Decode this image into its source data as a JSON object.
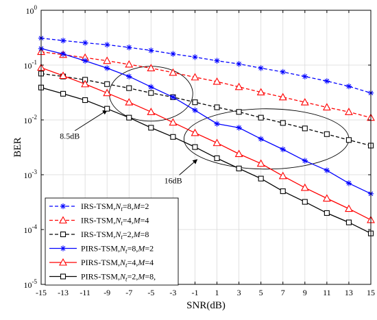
{
  "chart_data": {
    "type": "line",
    "xlabel": "SNR(dB)",
    "ylabel": "BER",
    "xlim": [
      -15,
      15
    ],
    "ylim": [
      1e-05,
      1
    ],
    "yscale": "log",
    "grid": true,
    "legend_position": "bottom-left",
    "x_ticks": [
      -15,
      -13,
      -11,
      -9,
      -7,
      -5,
      -3,
      -1,
      1,
      3,
      5,
      7,
      9,
      11,
      13,
      15
    ],
    "x_tick_labels": [
      "-15",
      "-13",
      "-11",
      "-9",
      "-7",
      "-5",
      "-3",
      "-1",
      "1",
      "3",
      "5",
      "7",
      "9",
      "11",
      "13",
      "15"
    ],
    "y_tick_labels": [
      {
        "base": "10",
        "exp": "0",
        "value": 1
      },
      {
        "base": "10",
        "exp": "-1",
        "value": 0.1
      },
      {
        "base": "10",
        "exp": "-2",
        "value": 0.01
      },
      {
        "base": "10",
        "exp": "-3",
        "value": 0.001
      },
      {
        "base": "10",
        "exp": "-4",
        "value": 0.0001
      },
      {
        "base": "10",
        "exp": "-5",
        "value": 1e-05
      }
    ],
    "x": [
      -15,
      -13,
      -11,
      -9,
      -7,
      -5,
      -3,
      -1,
      1,
      3,
      5,
      7,
      9,
      11,
      13,
      15
    ],
    "series": [
      {
        "name": "IRS-TSM,Nt=8,M=2",
        "legend_parts": [
          "IRS-TSM,",
          "N",
          "t",
          "=8,",
          "M",
          "=2"
        ],
        "color": "#0000ff",
        "dash": true,
        "marker": "asterisk",
        "values": [
          0.31,
          0.28,
          0.255,
          0.235,
          0.21,
          0.185,
          0.16,
          0.14,
          0.12,
          0.105,
          0.088,
          0.075,
          0.062,
          0.051,
          0.041,
          0.031
        ]
      },
      {
        "name": "IRS-TSM,Nt=4,M=4",
        "legend_parts": [
          "IRS-TSM,",
          "N",
          "t",
          "=4,",
          "M",
          "=4"
        ],
        "color": "#ff0000",
        "dash": true,
        "marker": "triangle",
        "values": [
          0.175,
          0.155,
          0.137,
          0.12,
          0.103,
          0.088,
          0.073,
          0.06,
          0.05,
          0.04,
          0.032,
          0.026,
          0.021,
          0.017,
          0.014,
          0.011
        ]
      },
      {
        "name": "IRS-TSM,Nt=2,M=8",
        "legend_parts": [
          "IRS-TSM,",
          "N",
          "t",
          "=2,",
          "M",
          "=8"
        ],
        "color": "#000000",
        "dash": true,
        "marker": "square",
        "values": [
          0.07,
          0.062,
          0.054,
          0.045,
          0.038,
          0.031,
          0.026,
          0.021,
          0.017,
          0.014,
          0.011,
          0.0088,
          0.007,
          0.0055,
          0.0043,
          0.0034
        ]
      },
      {
        "name": "PIRS-TSM,Nt=8,M=2",
        "legend_parts": [
          "PIRS-TSM,",
          "N",
          "t",
          "=8,",
          "M",
          "=2"
        ],
        "color": "#0000ff",
        "dash": false,
        "marker": "asterisk",
        "values": [
          0.2,
          0.16,
          0.12,
          0.088,
          0.062,
          0.04,
          0.026,
          0.015,
          0.0085,
          0.0072,
          0.0045,
          0.0029,
          0.0018,
          0.0012,
          0.0007,
          0.00045
        ]
      },
      {
        "name": "PIRS-TSM,Nt=4,M=4",
        "legend_parts": [
          "PIRS-TSM,",
          "N",
          "t",
          "=4,",
          "M",
          "=4"
        ],
        "color": "#ff0000",
        "dash": false,
        "marker": "triangle",
        "values": [
          0.09,
          0.064,
          0.045,
          0.031,
          0.021,
          0.014,
          0.009,
          0.0058,
          0.0038,
          0.0024,
          0.0016,
          0.00095,
          0.00058,
          0.00037,
          0.00024,
          0.00015
        ]
      },
      {
        "name": "PIRS-TSM,Nt=2,M=8,",
        "legend_parts": [
          "PIRS-TSM,",
          "N",
          "t",
          "=2,",
          "M",
          "=8,"
        ],
        "color": "#000000",
        "dash": false,
        "marker": "square",
        "values": [
          0.039,
          0.03,
          0.023,
          0.016,
          0.011,
          0.0072,
          0.0049,
          0.0032,
          0.002,
          0.0013,
          0.00085,
          0.0005,
          0.00032,
          0.0002,
          0.000135,
          8.5e-05
        ]
      }
    ],
    "annotations": [
      {
        "text": "8.5dB",
        "ellipse_center": [
          -5,
          0.03
        ],
        "ellipse_rx": 3.8,
        "ellipse_ry_decades": 0.5,
        "arrow_to": [
          -9,
          0.015
        ],
        "label_at": [
          -13.3,
          0.0045
        ]
      },
      {
        "text": "16dB",
        "ellipse_center": [
          5.5,
          0.0045
        ],
        "ellipse_rx": 7.5,
        "ellipse_ry_decades": 0.55,
        "arrow_to": [
          -0.8,
          0.0019
        ],
        "label_at": [
          -3.8,
          0.0007
        ]
      }
    ]
  }
}
